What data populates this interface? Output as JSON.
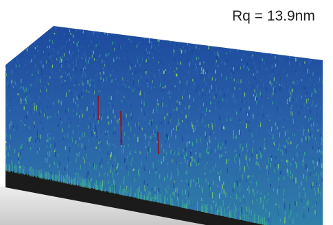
{
  "measurement": {
    "roughness_label": "Rq = 13.9nm"
  },
  "colors": {
    "background": "#ffffff",
    "surface_deep": "#1a3f97",
    "surface_mid": "#2f6fae",
    "surface_high": "#3fae96",
    "surface_peak": "#8ed36a",
    "spike": "#8a1c2e",
    "side_wall": "#1b1b1b",
    "base_plane": "#d7d7d7"
  }
}
